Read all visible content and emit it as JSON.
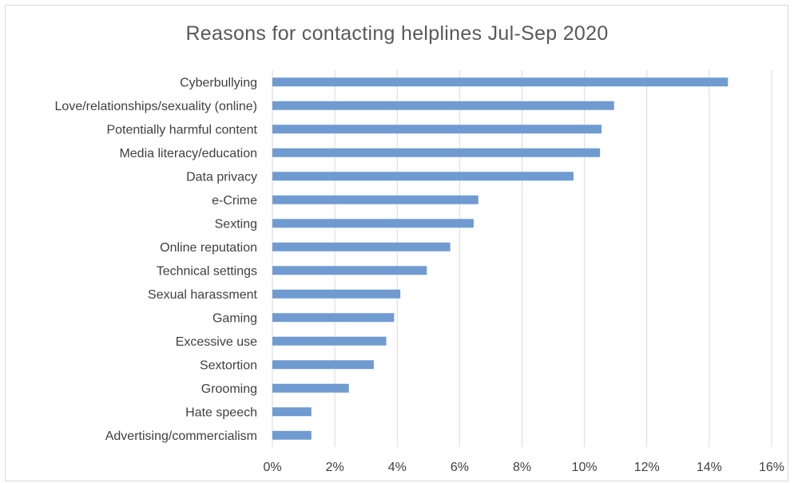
{
  "chart_data": {
    "type": "bar",
    "orientation": "horizontal",
    "title": "Reasons for contacting helplines Jul-Sep 2020",
    "xlabel": "",
    "ylabel": "",
    "categories": [
      "Cyberbullying",
      "Love/relationships/sexuality (online)",
      "Potentially harmful content",
      "Media literacy/education",
      "Data privacy",
      "e-Crime",
      "Sexting",
      "Online reputation",
      "Technical settings",
      "Sexual harassment",
      "Gaming",
      "Excessive use",
      "Sextortion",
      "Grooming",
      "Hate speech",
      "Advertising/commercialism"
    ],
    "values": [
      14.6,
      10.95,
      10.55,
      10.5,
      9.65,
      6.6,
      6.45,
      5.7,
      4.95,
      4.1,
      3.9,
      3.65,
      3.25,
      2.45,
      1.25,
      1.25
    ],
    "xlim": [
      0,
      16
    ],
    "xticks": [
      0,
      2,
      4,
      6,
      8,
      10,
      12,
      14,
      16
    ],
    "xtick_labels": [
      "0%",
      "2%",
      "4%",
      "6%",
      "8%",
      "10%",
      "12%",
      "14%",
      "16%"
    ],
    "grid": "vertical",
    "legend": "none",
    "colors": {
      "bar": "#6f9bd1",
      "grid": "#d9d9d9",
      "text": "#404040",
      "title": "#595959"
    }
  }
}
